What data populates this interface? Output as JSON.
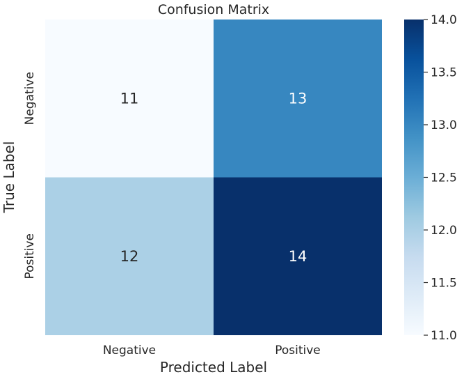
{
  "chart_data": {
    "type": "heatmap",
    "title": "Confusion Matrix",
    "xlabel": "Predicted Label",
    "ylabel": "True Label",
    "x_categories": [
      "Negative",
      "Positive"
    ],
    "y_categories": [
      "Negative",
      "Positive"
    ],
    "values": [
      [
        11,
        13
      ],
      [
        12,
        14
      ]
    ],
    "colormap": "Blues",
    "colorbar": {
      "min": 11.0,
      "max": 14.0,
      "ticks": [
        "11.0",
        "11.5",
        "12.0",
        "12.5",
        "13.0",
        "13.5",
        "14.0"
      ]
    }
  }
}
